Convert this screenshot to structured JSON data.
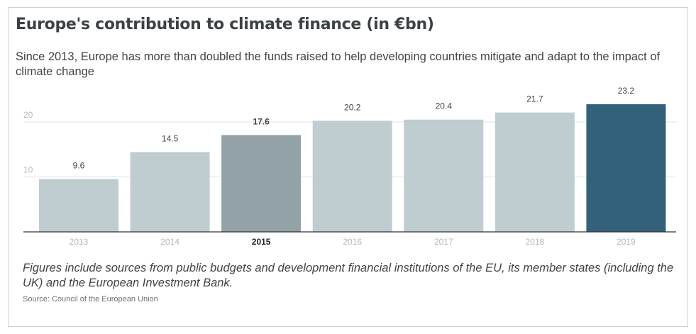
{
  "chart_data": {
    "type": "bar",
    "title": "Europe's contribution to climate finance (in €bn)",
    "subtitle": "Since 2013, Europe has more than doubled the funds raised to help developing countries mitigate and adapt to the impact of climate change",
    "categories": [
      "2013",
      "2014",
      "2015",
      "2016",
      "2017",
      "2018",
      "2019"
    ],
    "values": [
      9.6,
      14.5,
      17.6,
      20.2,
      20.4,
      21.7,
      23.2
    ],
    "value_labels": [
      "9.6",
      "14.5",
      "17.6",
      "20.2",
      "20.4",
      "21.7",
      "23.2"
    ],
    "highlighted_category": "2015",
    "yticks": [
      10,
      20
    ],
    "ytick_labels": [
      "10",
      "20"
    ],
    "ylim": [
      0,
      23.2
    ],
    "grid": true,
    "xlabel": "",
    "ylabel": "",
    "colors": {
      "default_bar": "#bfcdd1",
      "highlight_2015": "#92a2a6",
      "latest_2019": "#33617a",
      "grid": "#dfe4e6",
      "axis": "#333333",
      "tick_text": "#b3b9bc",
      "label_text": "#3f4447"
    }
  },
  "footnote": "Figures include sources from public budgets and development financial institutions of the EU, its member states (including the UK) and the European Investment Bank.",
  "source": "Source: Council of the European Union"
}
